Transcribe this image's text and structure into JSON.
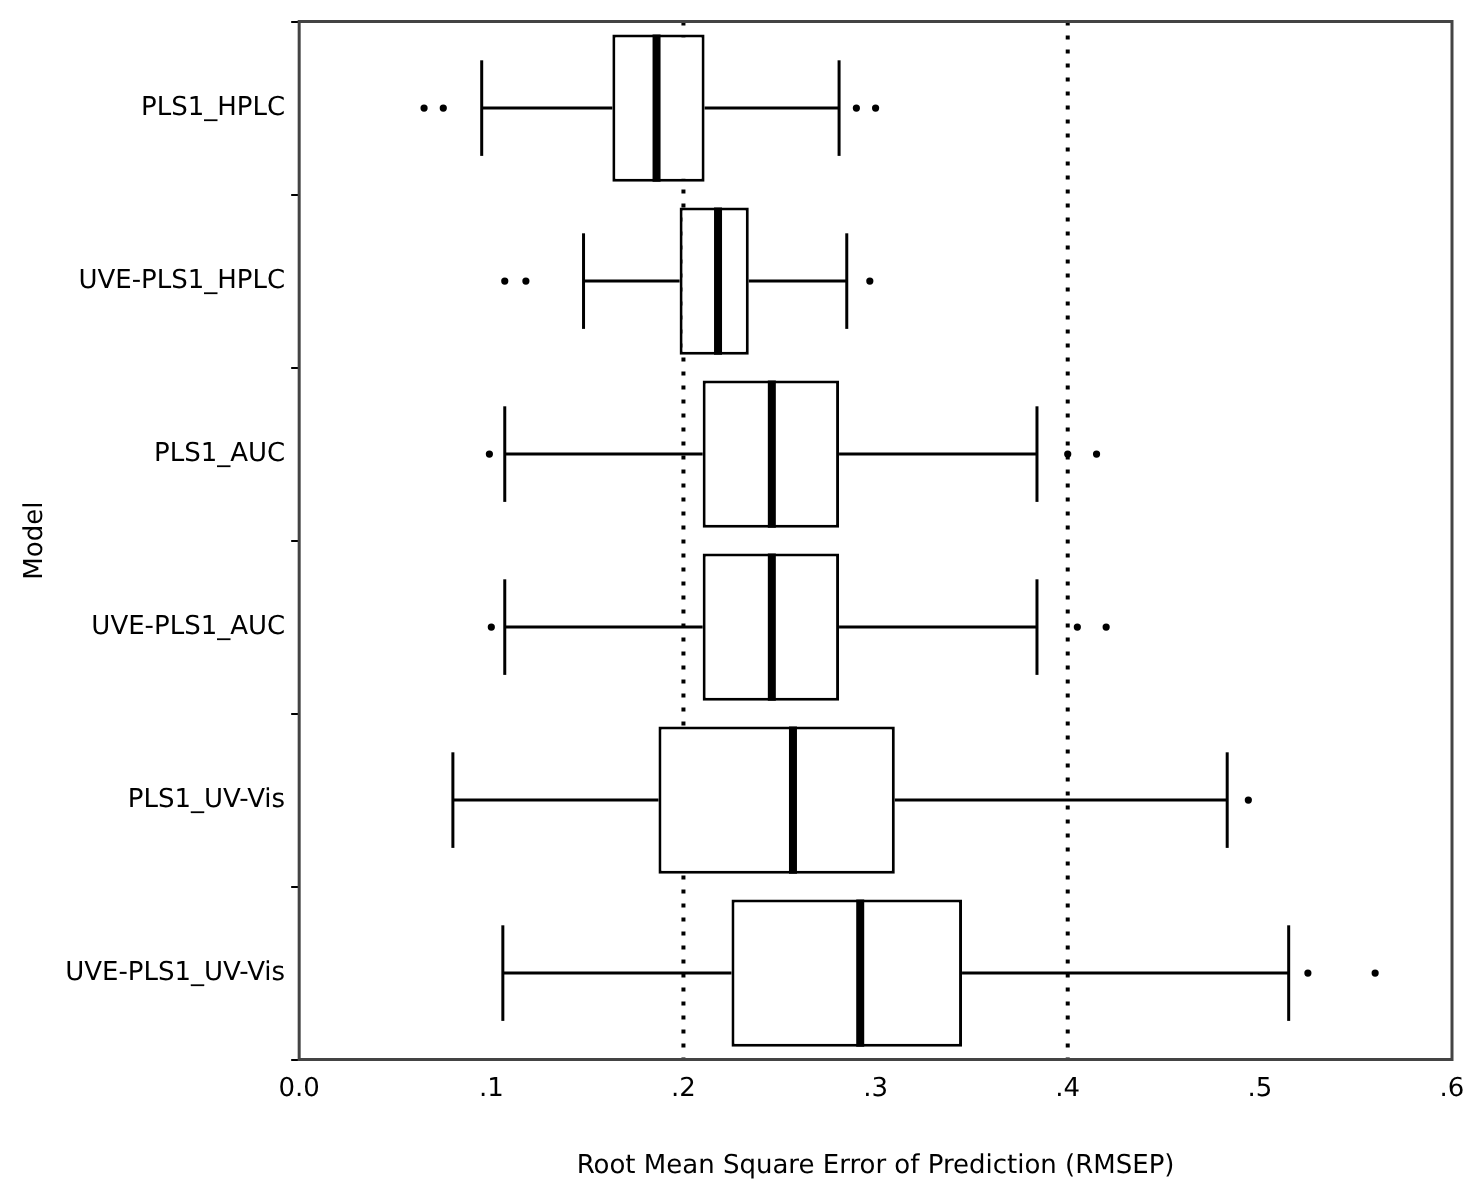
{
  "chart_data": {
    "type": "box",
    "orientation": "horizontal",
    "xlabel": "Root Mean Square Error of Prediction (RMSEP)",
    "ylabel": "Model",
    "categories": [
      "PLS1_HPLC",
      "UVE-PLS1_HPLC",
      "PLS1_AUC",
      "UVE-PLS1_AUC",
      "PLS1_UV-Vis",
      "UVE-PLS1_UV-Vis"
    ],
    "boxes": [
      {
        "low": 0.095,
        "q1": 0.163,
        "median": 0.186,
        "q3": 0.211,
        "high": 0.281,
        "outliers": [
          0.065,
          0.075,
          0.29,
          0.3
        ]
      },
      {
        "low": 0.148,
        "q1": 0.198,
        "median": 0.218,
        "q3": 0.234,
        "high": 0.285,
        "outliers": [
          0.107,
          0.118,
          0.297
        ]
      },
      {
        "low": 0.107,
        "q1": 0.21,
        "median": 0.246,
        "q3": 0.281,
        "high": 0.384,
        "outliers": [
          0.099,
          0.4,
          0.415
        ]
      },
      {
        "low": 0.107,
        "q1": 0.21,
        "median": 0.246,
        "q3": 0.281,
        "high": 0.384,
        "outliers": [
          0.1,
          0.405,
          0.42
        ]
      },
      {
        "low": 0.08,
        "q1": 0.187,
        "median": 0.257,
        "q3": 0.31,
        "high": 0.483,
        "outliers": [
          0.494
        ]
      },
      {
        "low": 0.106,
        "q1": 0.225,
        "median": 0.292,
        "q3": 0.345,
        "high": 0.515,
        "outliers": [
          0.525,
          0.56
        ]
      }
    ],
    "color": "#000000",
    "xlim": [
      0,
      0.6
    ],
    "xticks": [
      {
        "value": 0,
        "label": "0.0"
      },
      {
        "value": 0.1,
        "label": ".1"
      },
      {
        "value": 0.2,
        "label": ".2"
      },
      {
        "value": 0.3,
        "label": ".3"
      },
      {
        "value": 0.4,
        "label": ".4"
      },
      {
        "value": 0.5,
        "label": ".5"
      },
      {
        "value": 0.6,
        "label": ".6"
      }
    ],
    "ref_lines": [
      {
        "axis": "x",
        "value": 0.2,
        "line_style": "dotted"
      },
      {
        "axis": "x",
        "value": 0.4,
        "line_style": "dotted"
      }
    ],
    "grid": false,
    "legend": false
  }
}
